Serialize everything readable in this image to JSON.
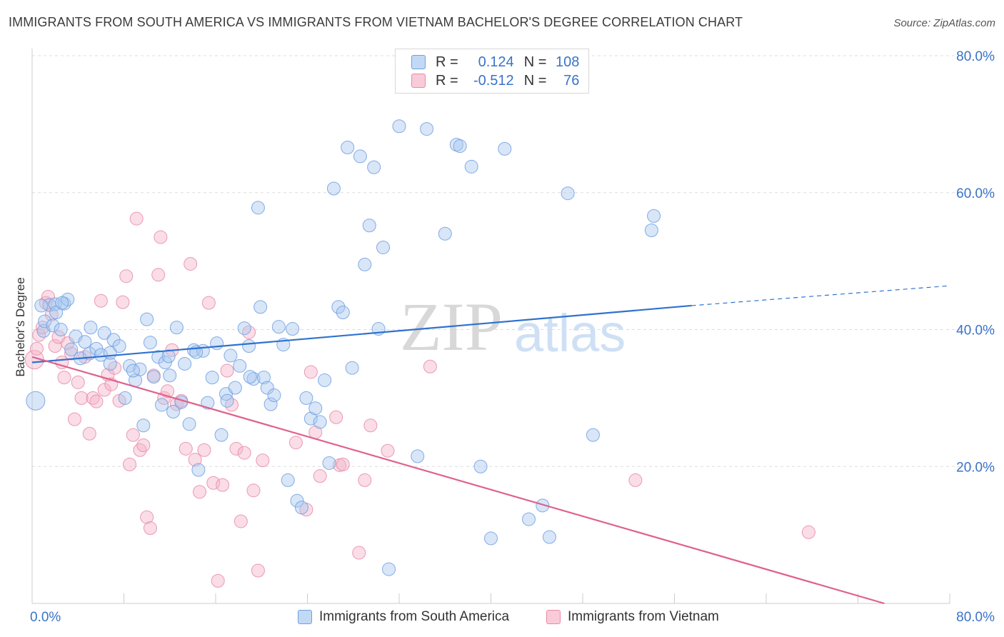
{
  "title": "IMMIGRANTS FROM SOUTH AMERICA VS IMMIGRANTS FROM VIETNAM BACHELOR'S DEGREE CORRELATION CHART",
  "source": "Source: ZipAtlas.com",
  "watermark": {
    "zip": "ZIP",
    "atlas": "atlas"
  },
  "legend": {
    "rows": [
      {
        "r_label": "R =",
        "r_value": "0.124",
        "n_label": "N =",
        "n_value": "108"
      },
      {
        "r_label": "R =",
        "r_value": "-0.512",
        "n_label": "N =",
        "n_value": "76"
      }
    ]
  },
  "colors": {
    "blue_fill": "#a8c8f0",
    "blue_stroke": "#6f9fe0",
    "blue_line": "#2f72cf",
    "pink_fill": "#f5b3c8",
    "pink_stroke": "#e88aa8",
    "pink_line": "#e0608e",
    "axis_text": "#3a73c8",
    "grid": "#dddddd"
  },
  "chart_data": {
    "type": "scatter",
    "title": "IMMIGRANTS FROM SOUTH AMERICA VS IMMIGRANTS FROM VIETNAM BACHELOR'S DEGREE CORRELATION CHART",
    "xlabel": "",
    "ylabel": "Bachelor's Degree",
    "xlim": [
      0,
      80
    ],
    "ylim": [
      0,
      80
    ],
    "x_tick_labels": [
      "0.0%",
      "80.0%"
    ],
    "y_tick_labels": [
      "20.0%",
      "40.0%",
      "60.0%",
      "80.0%"
    ],
    "y_ticks": [
      20,
      40,
      60,
      80
    ],
    "grid": true,
    "legend_position": "bottom-center",
    "series": [
      {
        "name": "Immigrants from South America",
        "color": "#a8c8f0",
        "r": 0.124,
        "n": 108,
        "trend": {
          "x0": 0,
          "y0": 35.2,
          "x1": 57.5,
          "y1": 43.5,
          "dashed_x_end": 80,
          "dashed_y_end": 46.4
        },
        "points": [
          [
            0.3,
            29.6
          ],
          [
            1.0,
            39.8
          ],
          [
            1.1,
            41.2
          ],
          [
            1.5,
            43.6
          ],
          [
            1.8,
            40.6
          ],
          [
            2.0,
            43.7
          ],
          [
            2.1,
            42.5
          ],
          [
            2.5,
            40.0
          ],
          [
            2.8,
            43.8
          ],
          [
            3.1,
            44.4
          ],
          [
            3.4,
            37.1
          ],
          [
            3.8,
            39.0
          ],
          [
            4.2,
            35.8
          ],
          [
            4.6,
            38.2
          ],
          [
            5.1,
            40.3
          ],
          [
            5.0,
            36.5
          ],
          [
            5.6,
            37.2
          ],
          [
            6.0,
            36.3
          ],
          [
            6.3,
            39.5
          ],
          [
            6.8,
            35.0
          ],
          [
            7.1,
            38.5
          ],
          [
            7.6,
            37.6
          ],
          [
            8.1,
            30.0
          ],
          [
            8.5,
            34.7
          ],
          [
            9.0,
            32.6
          ],
          [
            9.4,
            34.2
          ],
          [
            9.7,
            26.0
          ],
          [
            10.0,
            41.5
          ],
          [
            10.3,
            38.1
          ],
          [
            10.6,
            33.1
          ],
          [
            11.0,
            36.0
          ],
          [
            11.3,
            29.0
          ],
          [
            11.6,
            35.2
          ],
          [
            11.9,
            36.1
          ],
          [
            12.3,
            28.0
          ],
          [
            12.6,
            40.3
          ],
          [
            13.0,
            29.4
          ],
          [
            13.3,
            35.0
          ],
          [
            13.7,
            26.2
          ],
          [
            14.1,
            37.0
          ],
          [
            14.5,
            19.5
          ],
          [
            14.9,
            36.9
          ],
          [
            15.3,
            29.3
          ],
          [
            15.7,
            33.0
          ],
          [
            16.1,
            38.0
          ],
          [
            16.5,
            24.6
          ],
          [
            16.9,
            30.6
          ],
          [
            17.3,
            36.2
          ],
          [
            17.7,
            31.5
          ],
          [
            18.1,
            34.7
          ],
          [
            18.5,
            40.2
          ],
          [
            18.9,
            37.6
          ],
          [
            19.3,
            32.8
          ],
          [
            19.7,
            57.8
          ],
          [
            19.9,
            43.3
          ],
          [
            20.2,
            33.0
          ],
          [
            20.5,
            31.5
          ],
          [
            20.8,
            29.1
          ],
          [
            21.1,
            30.4
          ],
          [
            21.5,
            40.4
          ],
          [
            21.9,
            37.8
          ],
          [
            22.3,
            18.0
          ],
          [
            22.7,
            40.1
          ],
          [
            23.1,
            15.0
          ],
          [
            23.5,
            14.0
          ],
          [
            23.9,
            30.0
          ],
          [
            24.3,
            27.0
          ],
          [
            24.7,
            28.5
          ],
          [
            25.1,
            26.5
          ],
          [
            25.5,
            32.6
          ],
          [
            25.9,
            20.5
          ],
          [
            26.3,
            60.6
          ],
          [
            26.7,
            43.3
          ],
          [
            27.1,
            42.5
          ],
          [
            27.5,
            66.6
          ],
          [
            27.9,
            34.4
          ],
          [
            28.6,
            65.3
          ],
          [
            29.0,
            49.5
          ],
          [
            29.4,
            55.2
          ],
          [
            29.8,
            63.7
          ],
          [
            30.2,
            40.1
          ],
          [
            30.6,
            52.0
          ],
          [
            31.1,
            5.0
          ],
          [
            32.0,
            69.7
          ],
          [
            33.6,
            21.5
          ],
          [
            34.4,
            69.3
          ],
          [
            36.0,
            54.0
          ],
          [
            37.0,
            67.0
          ],
          [
            37.3,
            66.8
          ],
          [
            38.3,
            63.8
          ],
          [
            39.1,
            20.0
          ],
          [
            40.0,
            9.5
          ],
          [
            41.2,
            66.4
          ],
          [
            43.3,
            12.3
          ],
          [
            44.5,
            14.3
          ],
          [
            45.1,
            9.7
          ],
          [
            46.7,
            59.9
          ],
          [
            48.9,
            24.6
          ],
          [
            54.0,
            54.5
          ],
          [
            54.2,
            56.6
          ],
          [
            0.8,
            43.5
          ],
          [
            2.6,
            43.9
          ],
          [
            6.8,
            36.6
          ],
          [
            8.8,
            34.0
          ],
          [
            12.0,
            33.3
          ],
          [
            14.3,
            36.7
          ],
          [
            17.0,
            29.6
          ],
          [
            19.0,
            33.1
          ]
        ]
      },
      {
        "name": "Immigrants from Vietnam",
        "color": "#f5b3c8",
        "r": -0.512,
        "n": 76,
        "trend": {
          "x0": 0,
          "y0": 36.0,
          "x1": 74.3,
          "y1": 0
        },
        "points": [
          [
            0.2,
            35.6
          ],
          [
            0.6,
            39.2
          ],
          [
            0.9,
            40.3
          ],
          [
            1.2,
            43.9
          ],
          [
            1.4,
            44.8
          ],
          [
            1.7,
            42.2
          ],
          [
            2.0,
            37.6
          ],
          [
            2.3,
            38.9
          ],
          [
            2.6,
            35.2
          ],
          [
            2.8,
            33.0
          ],
          [
            3.1,
            38.0
          ],
          [
            3.4,
            36.5
          ],
          [
            3.7,
            26.9
          ],
          [
            4.0,
            32.3
          ],
          [
            4.3,
            30.0
          ],
          [
            4.6,
            36.0
          ],
          [
            5.0,
            24.8
          ],
          [
            5.3,
            30.0
          ],
          [
            5.6,
            29.5
          ],
          [
            6.0,
            44.2
          ],
          [
            6.3,
            31.2
          ],
          [
            6.6,
            33.4
          ],
          [
            6.9,
            32.0
          ],
          [
            7.2,
            34.4
          ],
          [
            7.6,
            29.6
          ],
          [
            7.9,
            44.0
          ],
          [
            8.2,
            47.8
          ],
          [
            8.5,
            20.3
          ],
          [
            8.8,
            24.6
          ],
          [
            9.1,
            56.2
          ],
          [
            9.4,
            22.4
          ],
          [
            9.7,
            23.1
          ],
          [
            10.0,
            12.6
          ],
          [
            10.3,
            11.0
          ],
          [
            10.6,
            33.3
          ],
          [
            11.0,
            48.0
          ],
          [
            11.2,
            53.5
          ],
          [
            11.5,
            30.0
          ],
          [
            11.8,
            31.0
          ],
          [
            12.2,
            37.0
          ],
          [
            12.6,
            29.1
          ],
          [
            13.0,
            29.6
          ],
          [
            13.4,
            22.6
          ],
          [
            13.8,
            49.6
          ],
          [
            14.2,
            21.0
          ],
          [
            14.6,
            16.3
          ],
          [
            15.0,
            22.4
          ],
          [
            15.4,
            43.9
          ],
          [
            15.8,
            17.6
          ],
          [
            16.2,
            3.3
          ],
          [
            16.6,
            17.3
          ],
          [
            17.0,
            34.0
          ],
          [
            17.4,
            29.0
          ],
          [
            17.8,
            22.6
          ],
          [
            18.2,
            12.0
          ],
          [
            18.5,
            22.0
          ],
          [
            18.9,
            39.6
          ],
          [
            19.3,
            16.5
          ],
          [
            19.7,
            4.8
          ],
          [
            20.1,
            20.9
          ],
          [
            23.0,
            23.5
          ],
          [
            23.9,
            13.7
          ],
          [
            24.3,
            33.8
          ],
          [
            24.7,
            25.0
          ],
          [
            25.1,
            18.6
          ],
          [
            26.5,
            27.2
          ],
          [
            26.8,
            20.2
          ],
          [
            27.1,
            20.3
          ],
          [
            28.5,
            7.4
          ],
          [
            29.0,
            18.0
          ],
          [
            29.5,
            26.0
          ],
          [
            31.0,
            22.3
          ],
          [
            34.7,
            34.6
          ],
          [
            52.6,
            18.0
          ],
          [
            67.7,
            10.4
          ],
          [
            0.4,
            37.2
          ]
        ]
      }
    ]
  }
}
